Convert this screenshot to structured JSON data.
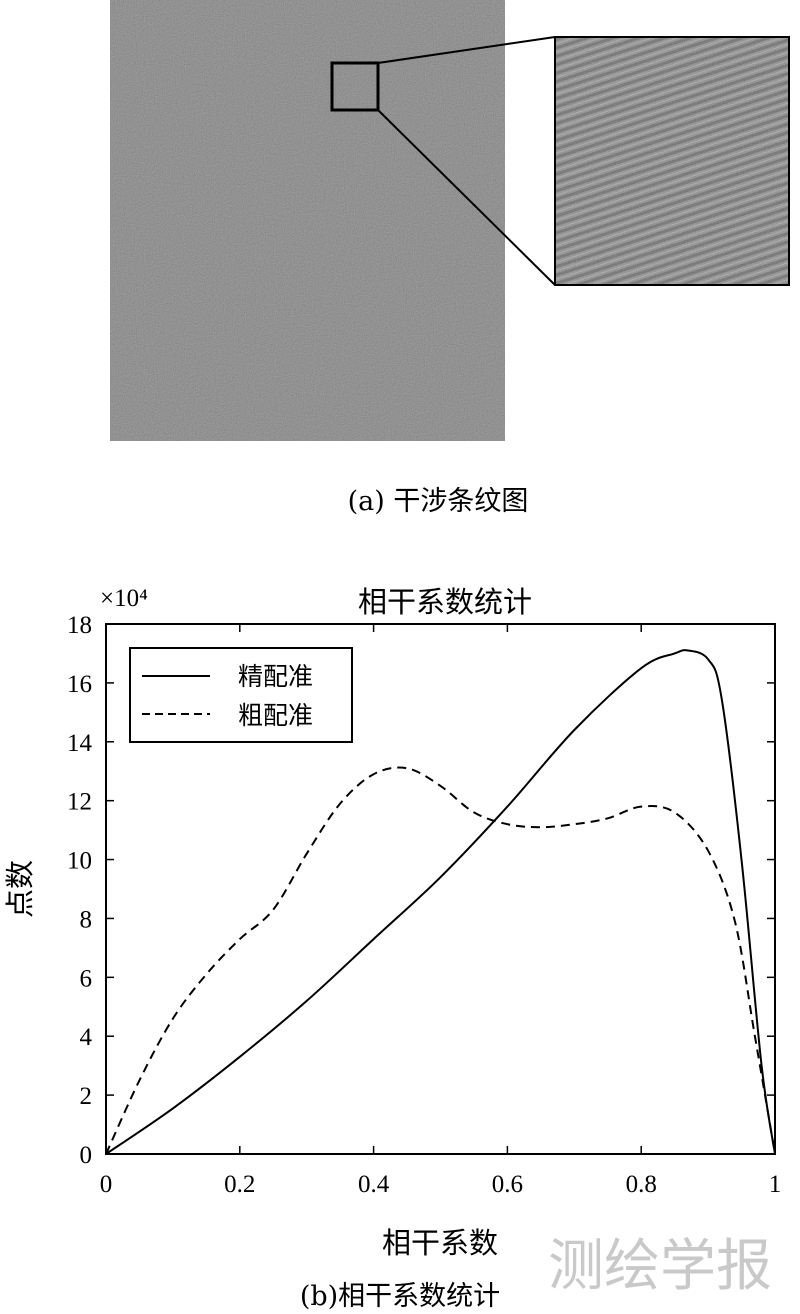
{
  "panel_a": {
    "caption": "(a) 干涉条纹图"
  },
  "panel_b": {
    "caption": "(b)相干系数统计"
  },
  "watermark": "测绘学报",
  "chart_data": {
    "type": "line",
    "title": "相干系数统计",
    "xlabel": "相干系数",
    "ylabel": "点数",
    "y_scale_label": "×10⁴",
    "xlim": [
      0,
      1
    ],
    "ylim": [
      0,
      18
    ],
    "x_ticks": [
      0,
      0.2,
      0.4,
      0.6,
      0.8,
      1
    ],
    "x_tick_labels": [
      "0",
      "0.2",
      "0.4",
      "0.6",
      "0.8",
      "1"
    ],
    "y_ticks": [
      0,
      2,
      4,
      6,
      8,
      10,
      12,
      14,
      16,
      18
    ],
    "y_tick_labels": [
      "0",
      "2",
      "4",
      "6",
      "8",
      "10",
      "12",
      "14",
      "16",
      "18"
    ],
    "grid": false,
    "legend_position": "top-left",
    "series": [
      {
        "name": "精配准",
        "style": "solid",
        "color": "#000000",
        "x": [
          0,
          0.1,
          0.2,
          0.3,
          0.4,
          0.5,
          0.6,
          0.7,
          0.8,
          0.85,
          0.87,
          0.9,
          0.92,
          0.95,
          0.98,
          1.0
        ],
        "y": [
          0,
          1.55,
          3.3,
          5.2,
          7.3,
          9.4,
          11.8,
          14.4,
          16.5,
          17.0,
          17.1,
          16.8,
          15.5,
          10.0,
          3.0,
          0.0
        ]
      },
      {
        "name": "粗配准",
        "style": "dashed",
        "color": "#000000",
        "x": [
          0,
          0.05,
          0.1,
          0.15,
          0.2,
          0.25,
          0.3,
          0.35,
          0.4,
          0.45,
          0.5,
          0.55,
          0.6,
          0.65,
          0.7,
          0.75,
          0.8,
          0.85,
          0.9,
          0.94,
          0.97,
          1.0
        ],
        "y": [
          0,
          2.5,
          4.6,
          6.1,
          7.3,
          8.3,
          10.2,
          11.9,
          12.9,
          13.1,
          12.5,
          11.6,
          11.2,
          11.1,
          11.2,
          11.4,
          11.8,
          11.6,
          10.3,
          7.9,
          4.0,
          0.0
        ]
      }
    ]
  }
}
